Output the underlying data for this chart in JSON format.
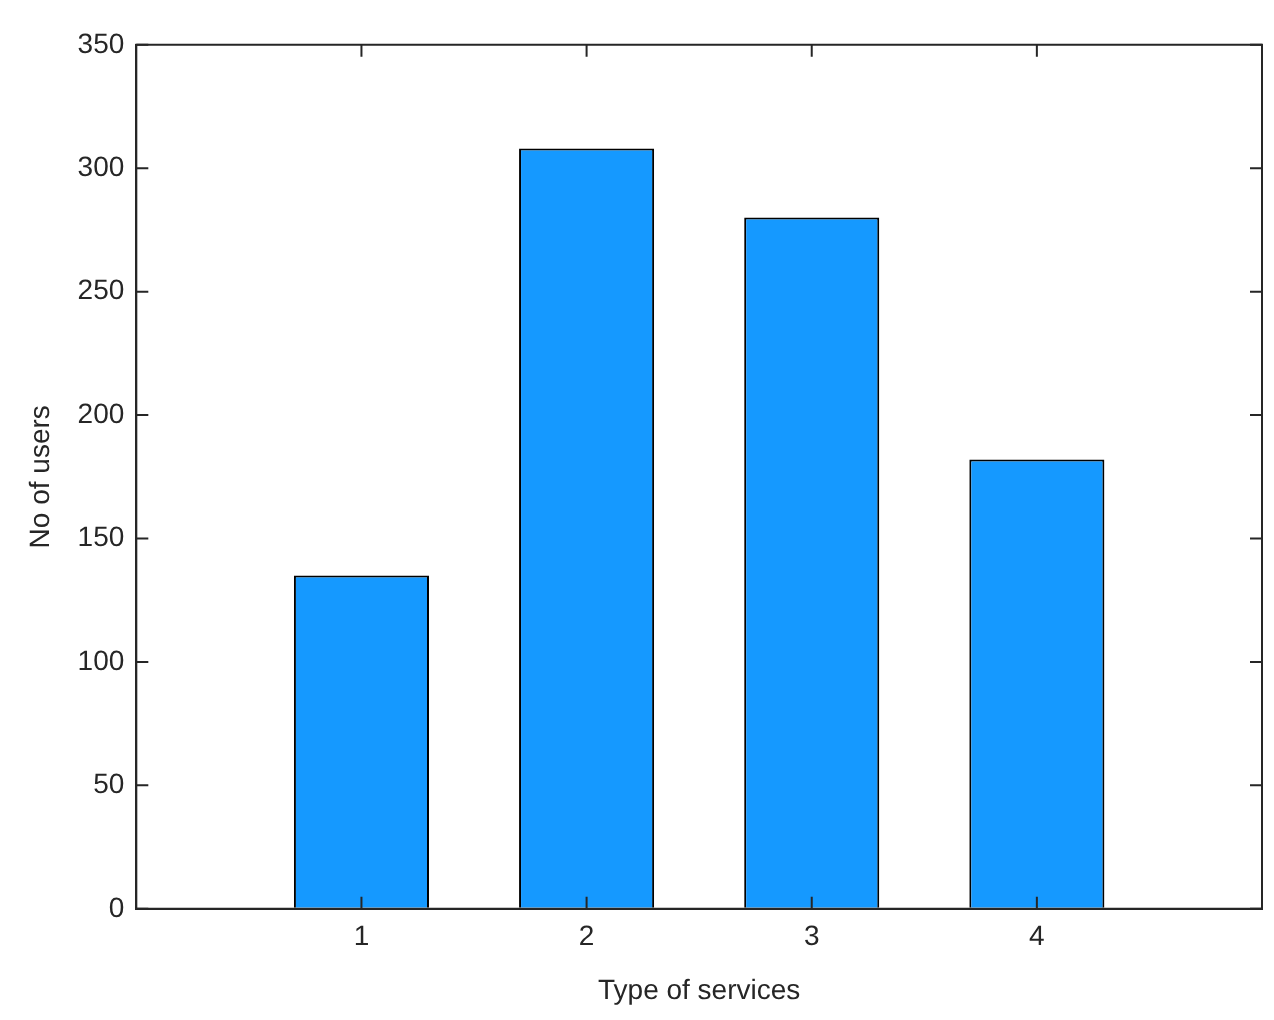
{
  "chart_data": {
    "type": "bar",
    "xlabel": "Type of services",
    "ylabel": "No of users",
    "x": [
      1,
      2,
      3,
      4
    ],
    "values": [
      135,
      308,
      280,
      182
    ],
    "color": "#1599ff",
    "xlim": [
      0,
      5
    ],
    "xticks": [
      1,
      2,
      3,
      4
    ],
    "ylim": [
      0,
      350
    ],
    "yticks": [
      0,
      50,
      100,
      150,
      200,
      250,
      300,
      350
    ],
    "grid": false,
    "legend": false
  }
}
